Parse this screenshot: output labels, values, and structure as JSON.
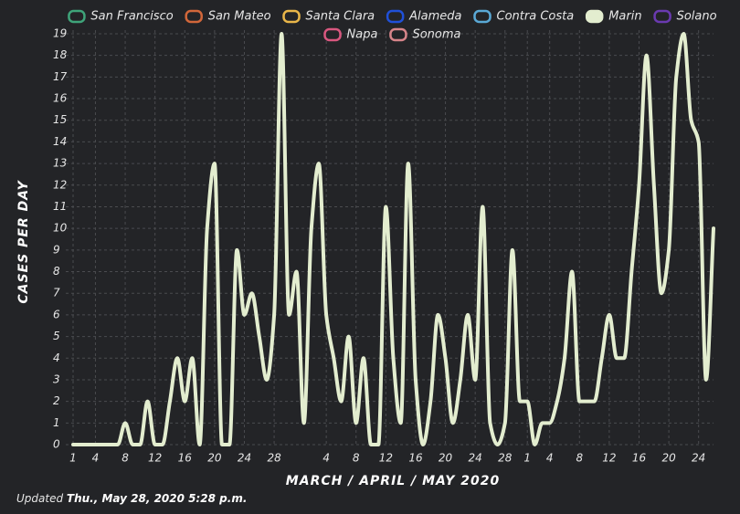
{
  "chart_data": {
    "type": "line",
    "ylabel": "CASES PER DAY",
    "xlabel": "MARCH / APRIL / MAY 2020",
    "updated_label": "Updated",
    "updated_time": "Thu., May 28, 2020 5:28 p.m.",
    "categories": [
      "1",
      null,
      null,
      "4",
      null,
      null,
      null,
      "8",
      null,
      null,
      null,
      "12",
      null,
      null,
      null,
      "16",
      null,
      null,
      null,
      "20",
      null,
      null,
      null,
      "24",
      null,
      null,
      null,
      "28",
      null,
      null,
      null,
      null,
      null,
      null,
      "4",
      null,
      null,
      null,
      "8",
      null,
      null,
      null,
      "12",
      null,
      null,
      null,
      "16",
      null,
      null,
      null,
      "20",
      null,
      null,
      null,
      "24",
      null,
      null,
      null,
      "28",
      null,
      null,
      "1",
      null,
      null,
      "4",
      null,
      null,
      null,
      "8",
      null,
      null,
      null,
      "12",
      null,
      null,
      null,
      "16",
      null,
      null,
      null,
      "20",
      null,
      null,
      null,
      "24",
      null,
      null
    ],
    "series": [
      {
        "name": "San Francisco",
        "color": "#3fa47a",
        "visible": false
      },
      {
        "name": "San Mateo",
        "color": "#d2673a",
        "visible": false
      },
      {
        "name": "Santa Clara",
        "color": "#e9b649",
        "visible": false
      },
      {
        "name": "Alameda",
        "color": "#2050d8",
        "visible": false
      },
      {
        "name": "Contra Costa",
        "color": "#5aa9d6",
        "visible": false
      },
      {
        "name": "Marin",
        "color": "#e3edcf",
        "visible": true,
        "values": [
          0,
          0,
          0,
          0,
          0,
          0,
          0,
          1,
          0,
          0,
          2,
          0,
          0,
          2,
          4,
          2,
          4,
          0,
          10,
          13,
          0,
          0,
          9,
          6,
          7,
          5,
          3,
          6,
          19,
          6,
          8,
          1,
          10,
          13,
          6,
          4,
          2,
          5,
          1,
          4,
          0,
          0,
          11,
          4,
          1,
          13,
          3,
          0,
          2,
          6,
          4,
          1,
          3,
          6,
          3,
          11,
          1,
          0,
          1,
          9,
          2,
          2,
          0,
          1,
          1,
          2,
          4,
          8,
          2,
          2,
          2,
          4,
          6,
          4,
          4,
          8,
          12,
          18,
          12,
          7,
          9,
          17,
          19,
          15,
          14,
          3,
          10
        ]
      },
      {
        "name": "Solano",
        "color": "#6a3ab0",
        "visible": false
      },
      {
        "name": "Napa",
        "color": "#d9577f",
        "visible": false
      },
      {
        "name": "Sonoma",
        "color": "#d7858a",
        "visible": false
      }
    ],
    "ylim": [
      0,
      19
    ],
    "yticks": [
      0,
      1,
      2,
      3,
      4,
      5,
      6,
      7,
      8,
      9,
      10,
      11,
      12,
      13,
      14,
      15,
      16,
      17,
      18,
      19
    ],
    "grid": true
  }
}
